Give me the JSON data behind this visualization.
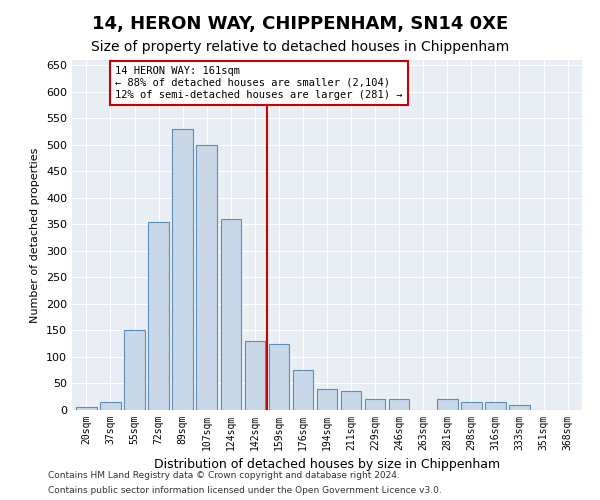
{
  "title": "14, HERON WAY, CHIPPENHAM, SN14 0XE",
  "subtitle": "Size of property relative to detached houses in Chippenham",
  "xlabel": "Distribution of detached houses by size in Chippenham",
  "ylabel": "Number of detached properties",
  "categories": [
    "20sqm",
    "37sqm",
    "55sqm",
    "72sqm",
    "89sqm",
    "107sqm",
    "124sqm",
    "142sqm",
    "159sqm",
    "176sqm",
    "194sqm",
    "211sqm",
    "229sqm",
    "246sqm",
    "263sqm",
    "281sqm",
    "298sqm",
    "316sqm",
    "333sqm",
    "351sqm",
    "368sqm"
  ],
  "values": [
    5,
    15,
    150,
    355,
    530,
    500,
    360,
    130,
    125,
    75,
    40,
    35,
    20,
    20,
    0,
    20,
    15,
    15,
    10,
    0,
    0
  ],
  "bar_color": "#c8d8e8",
  "bar_edge_color": "#5b8db8",
  "vline_color": "#cc0000",
  "vline_bin": 8,
  "annotation_line1": "14 HERON WAY: 161sqm",
  "annotation_line2": "← 88% of detached houses are smaller (2,104)",
  "annotation_line3": "12% of semi-detached houses are larger (281) →",
  "annotation_box_color": "#ffffff",
  "annotation_box_edge": "#cc0000",
  "ylim": [
    0,
    660
  ],
  "yticks": [
    0,
    50,
    100,
    150,
    200,
    250,
    300,
    350,
    400,
    450,
    500,
    550,
    600,
    650
  ],
  "bg_color": "#e8eef4",
  "footer1": "Contains HM Land Registry data © Crown copyright and database right 2024.",
  "footer2": "Contains public sector information licensed under the Open Government Licence v3.0.",
  "title_fontsize": 13,
  "subtitle_fontsize": 10,
  "ylabel_fontsize": 8,
  "xlabel_fontsize": 9
}
